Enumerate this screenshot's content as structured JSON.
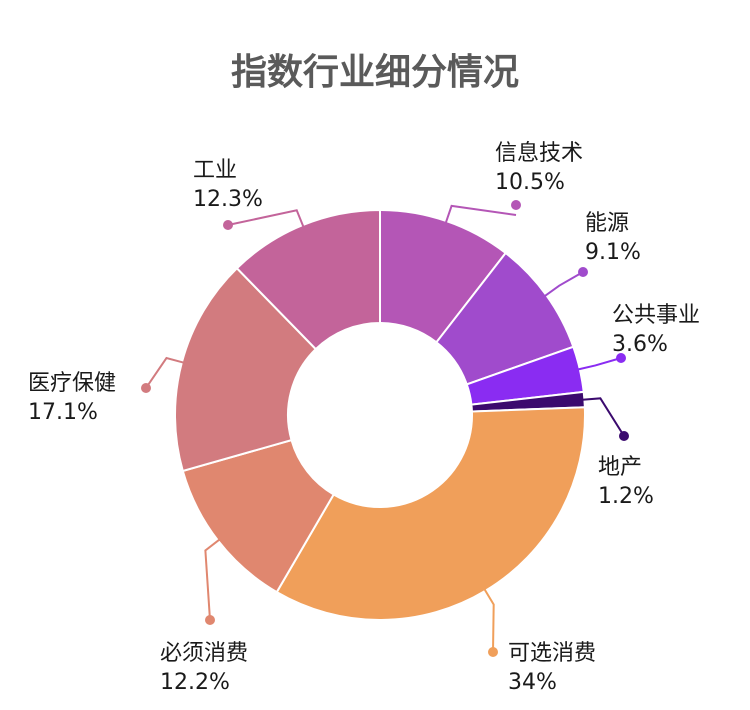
{
  "chart_data": {
    "type": "pie",
    "title": "指数行业细分情况",
    "slices": [
      {
        "label": "信息技术",
        "value_label": "10.5%",
        "value": 10.5,
        "color": "#b456b6"
      },
      {
        "label": "能源",
        "value_label": "9.1%",
        "value": 9.1,
        "color": "#a04bcc"
      },
      {
        "label": "公共事业",
        "value_label": "3.6%",
        "value": 3.6,
        "color": "#8a2cf2"
      },
      {
        "label": "地产",
        "value_label": "1.2%",
        "value": 1.2,
        "color": "#3b0a6e"
      },
      {
        "label": "可选消费",
        "value_label": "34%",
        "value": 34,
        "color": "#f09f5a"
      },
      {
        "label": "必须消费",
        "value_label": "12.2%",
        "value": 12.2,
        "color": "#e0876f"
      },
      {
        "label": "医疗保健",
        "value_label": "17.1%",
        "value": 17.1,
        "color": "#d27b7f"
      },
      {
        "label": "工业",
        "value_label": "12.3%",
        "value": 12.3,
        "color": "#c3649a"
      }
    ]
  }
}
